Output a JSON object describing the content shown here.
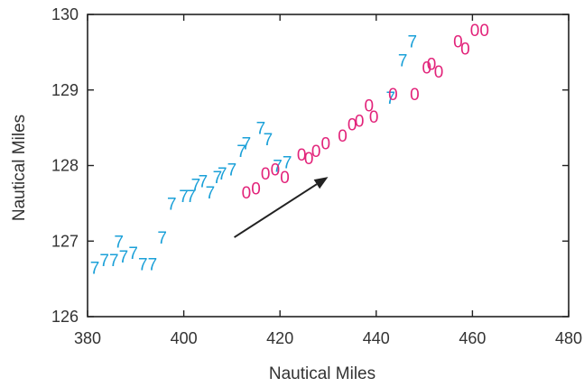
{
  "chart_data": {
    "type": "scatter",
    "title": "",
    "xlabel": "Nautical Miles",
    "ylabel": "Nautical Miles",
    "xlim": [
      380,
      480
    ],
    "ylim": [
      126,
      130
    ],
    "xticks": [
      380,
      400,
      420,
      440,
      460,
      480
    ],
    "yticks": [
      126,
      127,
      128,
      129,
      130
    ],
    "grid": false,
    "series": [
      {
        "marker": "7",
        "color": "#1aa0d8",
        "points": [
          [
            381.5,
            126.65
          ],
          [
            383.5,
            126.75
          ],
          [
            385.5,
            126.75
          ],
          [
            386.5,
            127.0
          ],
          [
            387.5,
            126.8
          ],
          [
            389.5,
            126.85
          ],
          [
            391.5,
            126.7
          ],
          [
            393.5,
            126.7
          ],
          [
            395.5,
            127.05
          ],
          [
            397.5,
            127.5
          ],
          [
            400.0,
            127.6
          ],
          [
            401.5,
            127.6
          ],
          [
            402.5,
            127.75
          ],
          [
            404.0,
            127.8
          ],
          [
            405.5,
            127.65
          ],
          [
            407.0,
            127.85
          ],
          [
            408.0,
            127.9
          ],
          [
            410.0,
            127.95
          ],
          [
            412.0,
            128.2
          ],
          [
            413.0,
            128.3
          ],
          [
            416.0,
            128.5
          ],
          [
            417.5,
            128.35
          ],
          [
            419.5,
            128.0
          ],
          [
            421.5,
            128.05
          ],
          [
            443.0,
            128.9
          ],
          [
            445.5,
            129.4
          ],
          [
            447.5,
            129.65
          ]
        ]
      },
      {
        "marker": "0",
        "color": "#e2237a",
        "points": [
          [
            413.0,
            127.65
          ],
          [
            415.0,
            127.7
          ],
          [
            417.0,
            127.9
          ],
          [
            419.0,
            127.95
          ],
          [
            421.0,
            127.85
          ],
          [
            424.5,
            128.15
          ],
          [
            426.0,
            128.1
          ],
          [
            427.5,
            128.2
          ],
          [
            429.5,
            128.3
          ],
          [
            433.0,
            128.4
          ],
          [
            435.0,
            128.55
          ],
          [
            436.5,
            128.6
          ],
          [
            438.5,
            128.8
          ],
          [
            439.5,
            128.65
          ],
          [
            443.5,
            128.95
          ],
          [
            448.0,
            128.95
          ],
          [
            450.5,
            129.3
          ],
          [
            451.5,
            129.35
          ],
          [
            453.0,
            129.25
          ],
          [
            457.0,
            129.65
          ],
          [
            458.5,
            129.55
          ],
          [
            460.5,
            129.8
          ],
          [
            462.5,
            129.8
          ]
        ]
      }
    ],
    "annotations": [
      {
        "type": "arrow",
        "from": [
          410.5,
          127.05
        ],
        "to": [
          430.0,
          127.85
        ],
        "color": "#222222"
      }
    ]
  }
}
